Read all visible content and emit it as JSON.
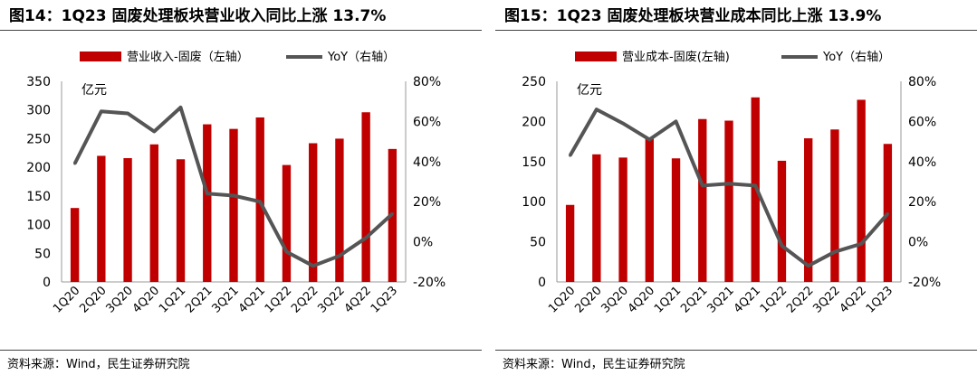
{
  "colors": {
    "bar": "#C00000",
    "line": "#555555"
  },
  "chart_data": [
    {
      "type": "bar",
      "title": "图14：1Q23 固废处理板块营业收入同比上涨 13.7%",
      "unit_label": "亿元",
      "categories": [
        "1Q20",
        "2Q20",
        "3Q20",
        "4Q20",
        "1Q21",
        "2Q21",
        "3Q21",
        "4Q21",
        "1Q22",
        "2Q22",
        "3Q22",
        "4Q22",
        "1Q23"
      ],
      "series": [
        {
          "name": "营业收入-固废（左轴）",
          "type": "bar",
          "axis": "left",
          "values": [
            129,
            220,
            216,
            240,
            214,
            275,
            267,
            287,
            204,
            242,
            250,
            296,
            232
          ]
        },
        {
          "name": "YoY（右轴）",
          "type": "line",
          "axis": "right",
          "values": [
            39,
            65,
            64,
            55,
            67,
            24,
            23,
            20,
            -5,
            -12,
            -7,
            2,
            14
          ]
        }
      ],
      "left_axis": {
        "ylim": [
          0,
          350
        ],
        "ticks": [
          "0",
          "50",
          "100",
          "150",
          "200",
          "250",
          "300",
          "350"
        ]
      },
      "right_axis": {
        "ylim": [
          -20,
          80
        ],
        "ticks": [
          "-20%",
          "0%",
          "20%",
          "40%",
          "60%",
          "80%"
        ]
      },
      "legend": "top",
      "source": "资料来源：Wind，民生证券研究院"
    },
    {
      "type": "bar",
      "title": "图15：1Q23 固废处理板块营业成本同比上涨 13.9%",
      "unit_label": "亿元",
      "categories": [
        "1Q20",
        "2Q20",
        "3Q20",
        "4Q20",
        "1Q21",
        "2Q21",
        "3Q21",
        "4Q21",
        "1Q22",
        "2Q22",
        "3Q22",
        "4Q22",
        "1Q23"
      ],
      "series": [
        {
          "name": "营业成本-固废(左轴)",
          "type": "bar",
          "axis": "left",
          "values": [
            96,
            159,
            155,
            180,
            154,
            203,
            201,
            230,
            151,
            179,
            190,
            227,
            172
          ]
        },
        {
          "name": "YoY（右轴）",
          "type": "line",
          "axis": "right",
          "values": [
            43,
            66,
            59,
            51,
            60,
            28,
            29,
            28,
            -2,
            -12,
            -5,
            -1,
            14
          ]
        }
      ],
      "left_axis": {
        "ylim": [
          0,
          250
        ],
        "ticks": [
          "0",
          "50",
          "100",
          "150",
          "200",
          "250"
        ]
      },
      "right_axis": {
        "ylim": [
          -20,
          80
        ],
        "ticks": [
          "-20%",
          "0%",
          "20%",
          "40%",
          "60%",
          "80%"
        ]
      },
      "legend": "top",
      "source": "资料来源：Wind，民生证券研究院"
    }
  ]
}
